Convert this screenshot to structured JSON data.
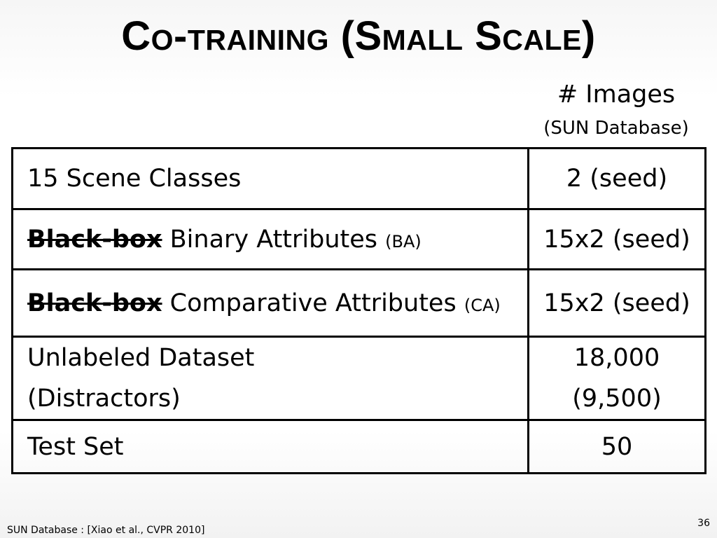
{
  "slide": {
    "title": "Co-training (Small Scale)",
    "column_header": {
      "main": "# Images",
      "sub": "(SUN Database)"
    },
    "rows": [
      {
        "label": "15 Scene Classes",
        "value": "2 (seed)"
      },
      {
        "struck": "Black-box",
        "label": " Binary Attributes ",
        "abbr": "(BA)",
        "value": "15x2 (seed)"
      },
      {
        "struck": "Black-box",
        "label": " Comparative Attributes ",
        "abbr": "(CA)",
        "value": "15x2 (seed)"
      },
      {
        "label_line1": "Unlabeled Dataset",
        "label_line2": "(Distractors)",
        "value_line1": "18,000",
        "value_line2": "(9,500)"
      },
      {
        "label": "Test Set",
        "value": "50"
      }
    ],
    "footer_citation": "SUN Database : [Xiao et al., CVPR 2010]",
    "page_number": "36"
  }
}
